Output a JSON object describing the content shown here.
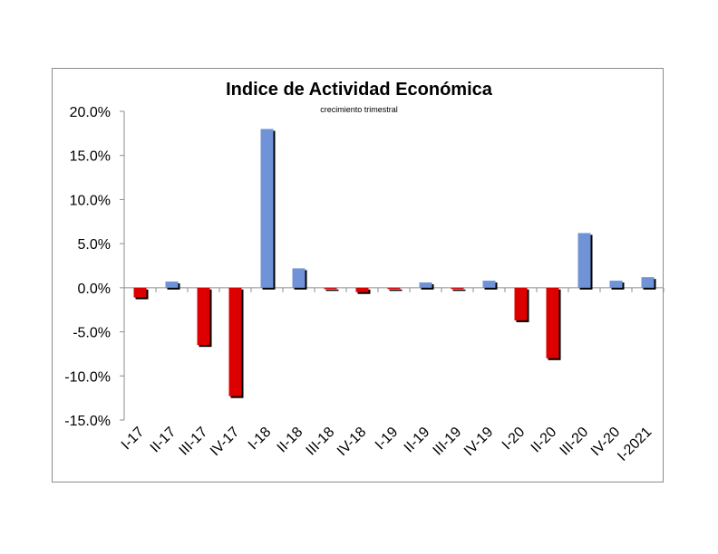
{
  "chart_data": {
    "type": "bar",
    "title": "Indice de Actividad Económica",
    "subtitle": "crecimiento trimestral",
    "categories": [
      "I-17",
      "II-17",
      "III-17",
      "IV-17",
      "I-18",
      "II-18",
      "III-18",
      "IV-18",
      "I-19",
      "II-19",
      "III-19",
      "IV-19",
      "I-20",
      "II-20",
      "III-20",
      "IV-20",
      "I-2021"
    ],
    "values": [
      -1.1,
      0.7,
      -6.5,
      -12.3,
      18.0,
      2.2,
      -0.1,
      -0.5,
      -0.1,
      0.6,
      -0.1,
      0.8,
      -3.7,
      -8.0,
      6.2,
      0.8,
      1.2
    ],
    "ylim": [
      -15,
      20
    ],
    "yticks": [
      20,
      15,
      10,
      5,
      0,
      -5,
      -10,
      -15
    ],
    "ytick_labels": [
      "20.0%",
      "15.0%",
      "10.0%",
      "5.0%",
      "0.0%",
      "-5.0%",
      "-10.0%",
      "-15.0%"
    ],
    "colors": {
      "positive": "#6f93d6",
      "negative": "#dd0000",
      "shadow": "#000000"
    },
    "grid": false,
    "legend": "none"
  }
}
